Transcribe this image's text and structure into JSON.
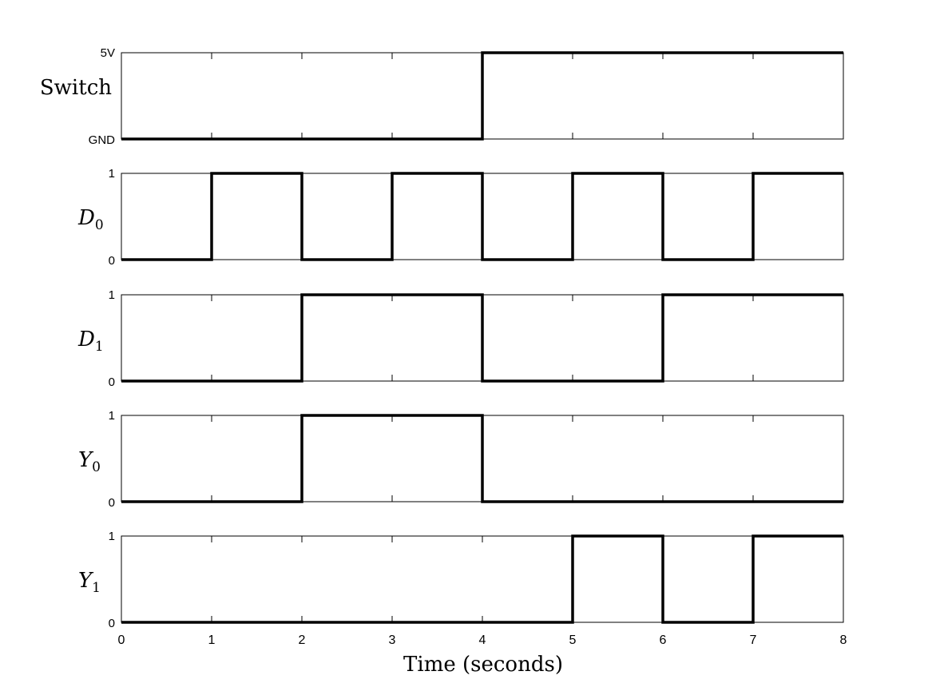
{
  "chart_data": {
    "type": "line",
    "subtype": "digital-timing-diagram",
    "xlabel": "Time (seconds)",
    "xlim": [
      0,
      8
    ],
    "xticks": [
      0,
      1,
      2,
      3,
      4,
      5,
      6,
      7,
      8
    ],
    "grid": false,
    "series": [
      {
        "name": "Switch",
        "label_main": "Switch",
        "label_sub": "",
        "ytick_low": "GND",
        "ytick_high": "5V",
        "transitions": [
          0,
          4
        ],
        "levels": [
          0,
          1
        ]
      },
      {
        "name": "D0",
        "label_main": "D",
        "label_sub": "0",
        "ytick_low": "0",
        "ytick_high": "1",
        "transitions": [
          0,
          1,
          2,
          3,
          4,
          5,
          6,
          7
        ],
        "levels": [
          0,
          1,
          0,
          1,
          0,
          1,
          0,
          1
        ]
      },
      {
        "name": "D1",
        "label_main": "D",
        "label_sub": "1",
        "ytick_low": "0",
        "ytick_high": "1",
        "transitions": [
          0,
          2,
          4,
          6
        ],
        "levels": [
          0,
          1,
          0,
          1
        ]
      },
      {
        "name": "Y0",
        "label_main": "Y",
        "label_sub": "0",
        "ytick_low": "0",
        "ytick_high": "1",
        "transitions": [
          0,
          2,
          4
        ],
        "levels": [
          0,
          1,
          0
        ]
      },
      {
        "name": "Y1",
        "label_main": "Y",
        "label_sub": "1",
        "ytick_low": "0",
        "ytick_high": "1",
        "transitions": [
          0,
          5,
          6,
          7
        ],
        "levels": [
          0,
          1,
          0,
          1
        ]
      }
    ]
  }
}
